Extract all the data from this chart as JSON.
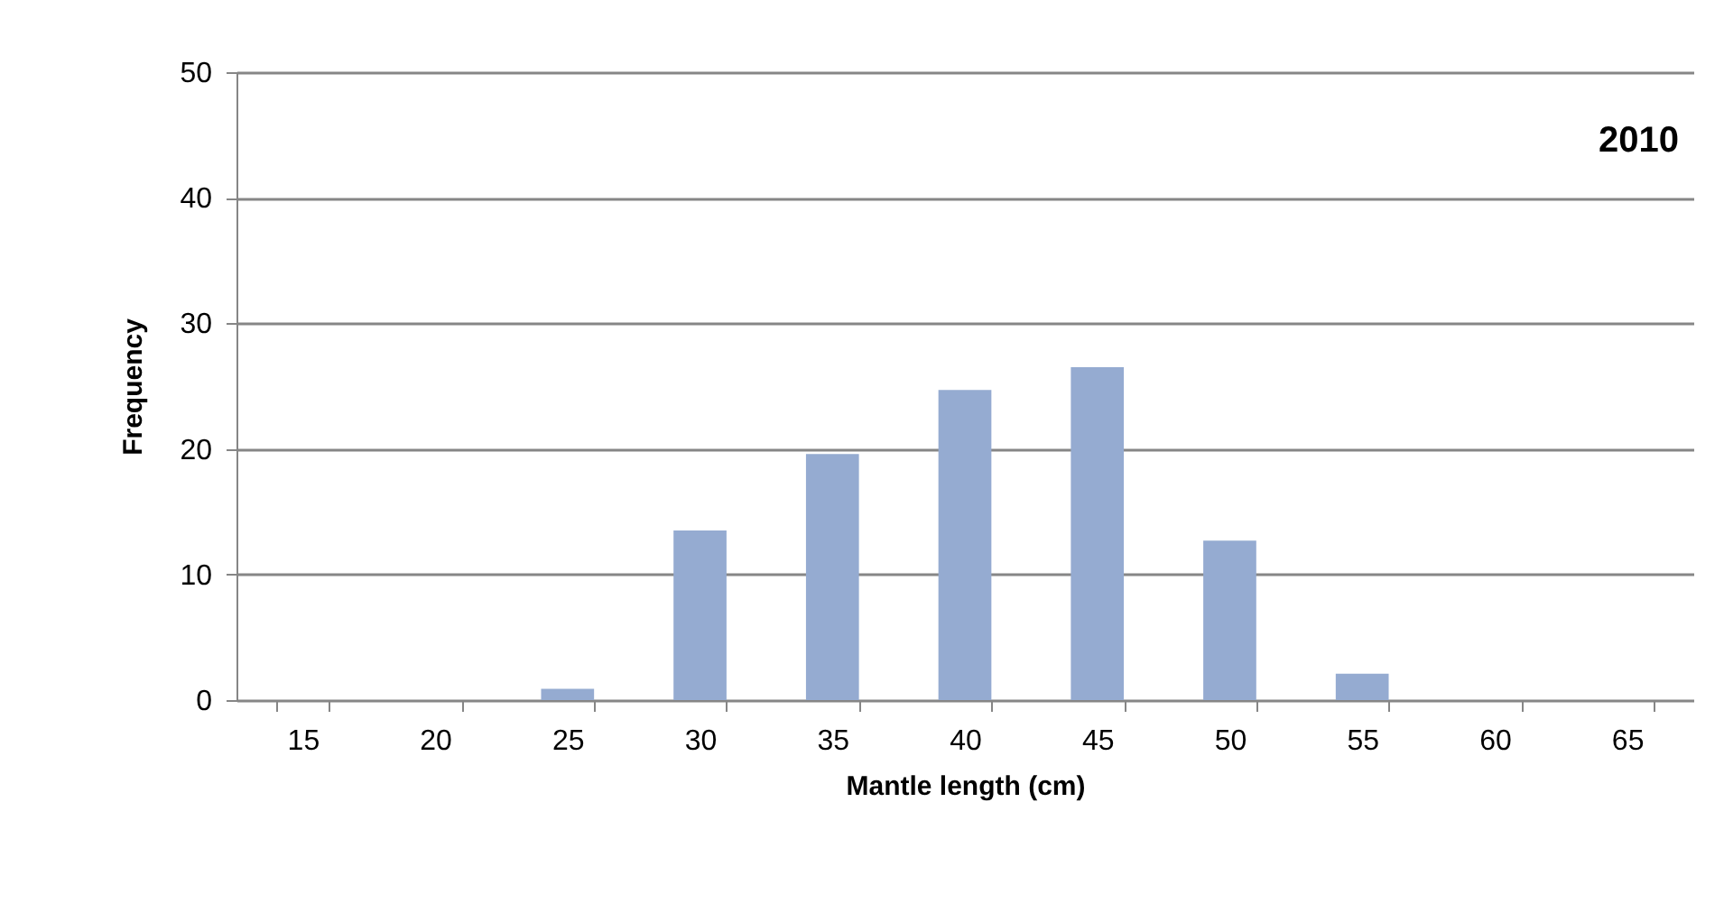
{
  "chart_data": {
    "type": "bar",
    "categories": [
      "15",
      "20",
      "25",
      "30",
      "35",
      "40",
      "45",
      "50",
      "55",
      "60",
      "65"
    ],
    "values": [
      0,
      0,
      0.9,
      13.5,
      19.6,
      24.7,
      26.5,
      12.7,
      2.1,
      0,
      0
    ],
    "color": "#95abd1",
    "xlabel": "Mantle length (cm)",
    "ylabel": "Frequency",
    "ylim": [
      0,
      50
    ],
    "yticks": [
      0,
      10,
      20,
      30,
      40,
      50
    ],
    "grid": "y",
    "annotations": [
      "2010"
    ]
  }
}
